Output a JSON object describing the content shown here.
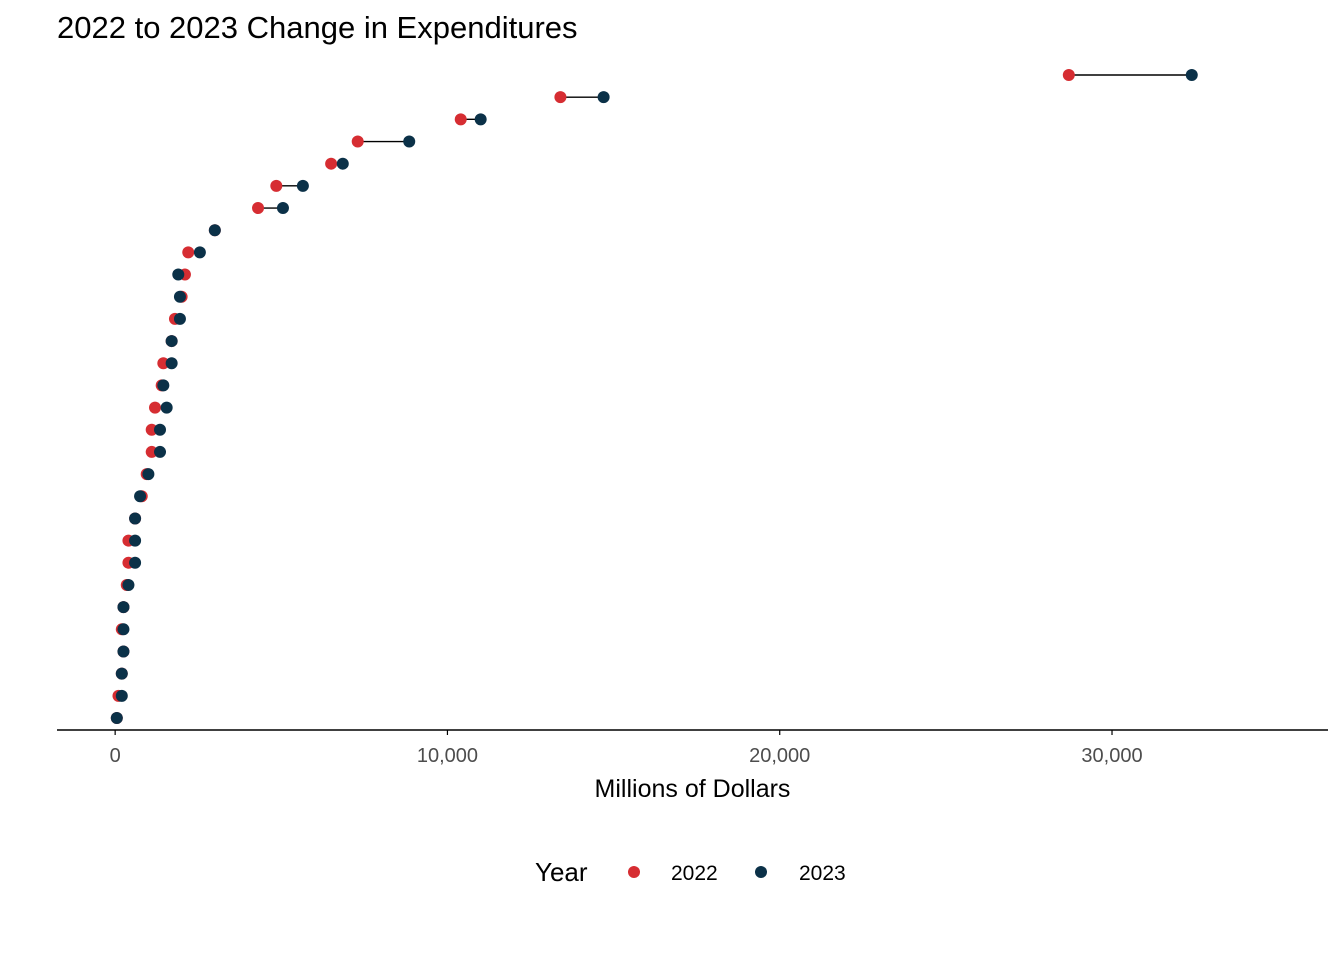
{
  "chart_data": {
    "type": "dumbbell",
    "title": "2022 to 2023 Change in Expenditures",
    "xlabel": "Millions of Dollars",
    "ylabel": "",
    "xlim": [
      -1750,
      36500
    ],
    "xticks": [
      0,
      10000,
      20000,
      30000
    ],
    "xtick_labels": [
      "0",
      "10,000",
      "20,000",
      "30,000"
    ],
    "grid": false,
    "legend": {
      "title": "Year",
      "position": "bottom"
    },
    "series": [
      {
        "name": "2022",
        "color": "#d62d32"
      },
      {
        "name": "2023",
        "color": "#0b3148"
      }
    ],
    "rows": [
      {
        "v2022": 28700,
        "v2023": 32400
      },
      {
        "v2022": 13400,
        "v2023": 14700
      },
      {
        "v2022": 10400,
        "v2023": 11000
      },
      {
        "v2022": 7300,
        "v2023": 8850
      },
      {
        "v2022": 6500,
        "v2023": 6850
      },
      {
        "v2022": 4850,
        "v2023": 5650
      },
      {
        "v2022": 4300,
        "v2023": 5050
      },
      {
        "v2022": 3000,
        "v2023": 3000
      },
      {
        "v2022": 2200,
        "v2023": 2550
      },
      {
        "v2022": 2100,
        "v2023": 1900
      },
      {
        "v2022": 2000,
        "v2023": 1950
      },
      {
        "v2022": 1800,
        "v2023": 1950
      },
      {
        "v2022": 1700,
        "v2023": 1700
      },
      {
        "v2022": 1450,
        "v2023": 1700
      },
      {
        "v2022": 1400,
        "v2023": 1450
      },
      {
        "v2022": 1200,
        "v2023": 1550
      },
      {
        "v2022": 1100,
        "v2023": 1350
      },
      {
        "v2022": 1100,
        "v2023": 1350
      },
      {
        "v2022": 950,
        "v2023": 1000
      },
      {
        "v2022": 800,
        "v2023": 750
      },
      {
        "v2022": 600,
        "v2023": 600
      },
      {
        "v2022": 400,
        "v2023": 600
      },
      {
        "v2022": 400,
        "v2023": 600
      },
      {
        "v2022": 350,
        "v2023": 400
      },
      {
        "v2022": 250,
        "v2023": 250
      },
      {
        "v2022": 200,
        "v2023": 250
      },
      {
        "v2022": 250,
        "v2023": 250
      },
      {
        "v2022": 200,
        "v2023": 200
      },
      {
        "v2022": 100,
        "v2023": 200
      },
      {
        "v2022": 50,
        "v2023": 50
      }
    ]
  }
}
